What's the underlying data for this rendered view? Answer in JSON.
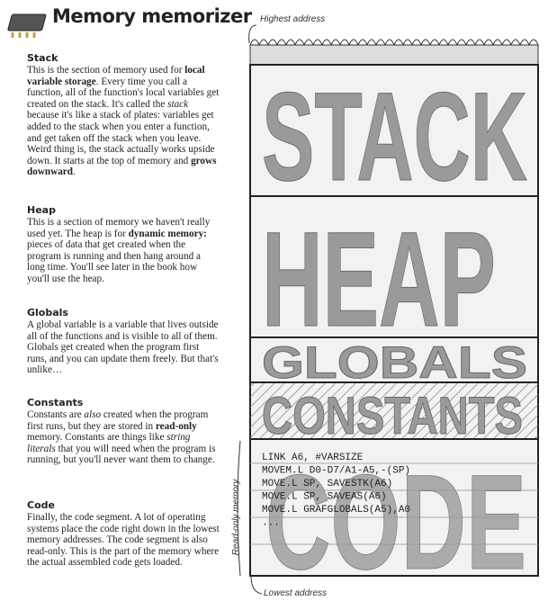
{
  "header": {
    "title": "Memory memorizer"
  },
  "sections": [
    {
      "heading": "Stack",
      "body": [
        "This is the section of memory used for ",
        {
          "text": "local variable storage",
          "style": "bold"
        },
        ". Every time you call a function, all of the function's local variables get created on the stack. It's called the ",
        {
          "text": "stack",
          "style": "italic"
        },
        " because it's like a stack of plates: variables get added to the stack when you enter a function, and get taken off the stack when you leave. Weird thing is, the stack actually works upside down. It starts at the top of memory and ",
        {
          "text": "grows downward",
          "style": "bold"
        },
        "."
      ]
    },
    {
      "heading": "Heap",
      "body": [
        "This is a section of memory we haven't really used yet. The heap is for ",
        {
          "text": "dynamic memory:",
          "style": "bold"
        },
        " pieces of data that get created when the program is running and then hang around a long time. You'll see later in the book how you'll use the heap."
      ]
    },
    {
      "heading": "Globals",
      "body": [
        "A global variable is a variable that lives outside all of the functions and is visible to all of them. Globals get created when the program first runs, and you can update them freely. But that's unlike…"
      ]
    },
    {
      "heading": "Constants",
      "body": [
        "Constants are ",
        {
          "text": "also",
          "style": "italic"
        },
        " created when the program first runs, but they are stored in ",
        {
          "text": "read-only",
          "style": "bold"
        },
        " memory. Constants are things like ",
        {
          "text": "string literals",
          "style": "italic"
        },
        " that you will need when the program is running, but you'll never want them to change."
      ]
    },
    {
      "heading": "Code",
      "body": [
        "Finally, the code segment. A lot of operating systems place the code right down in the lowest memory addresses. The code segment is also read-only. This is the part of the memory where the actual assembled code gets loaded."
      ]
    }
  ],
  "diagram": {
    "top_label": "Highest address",
    "bottom_label": "Lowest address",
    "side_label": "Read-only memory",
    "segments": [
      "STACK",
      "HEAP",
      "GLOBALS",
      "CONSTANTS",
      "CODE"
    ],
    "code_lines": [
      "LINK A6, #VARSIZE",
      "MOVEM.L D0-D7/A1-A5,-(SP)",
      "MOVE.L SP, SAVESTK(A6)",
      "MOVE.L SP, SAVEAS(A6)",
      "MOVE.L GRAFGLOBALS(A5),A0",
      "..."
    ]
  }
}
